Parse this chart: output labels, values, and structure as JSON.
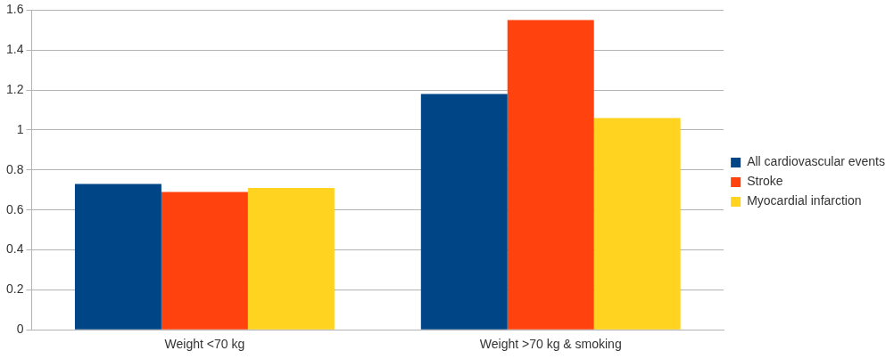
{
  "chart_data": {
    "type": "bar",
    "categories": [
      "Weight <70 kg",
      "Weight >70 kg & smoking"
    ],
    "series": [
      {
        "name": "All cardiovascular events",
        "color": "#004586",
        "values": [
          0.73,
          1.18
        ]
      },
      {
        "name": "Stroke",
        "color": "#ff420e",
        "values": [
          0.69,
          1.55
        ]
      },
      {
        "name": "Myocardial infarction",
        "color": "#ffd320",
        "values": [
          0.71,
          1.06
        ]
      }
    ],
    "ylim": [
      0,
      1.6
    ],
    "yticks": [
      0,
      0.2,
      0.4,
      0.6,
      0.8,
      1,
      1.2,
      1.4,
      1.6
    ],
    "grid": "y",
    "legend": "right"
  }
}
